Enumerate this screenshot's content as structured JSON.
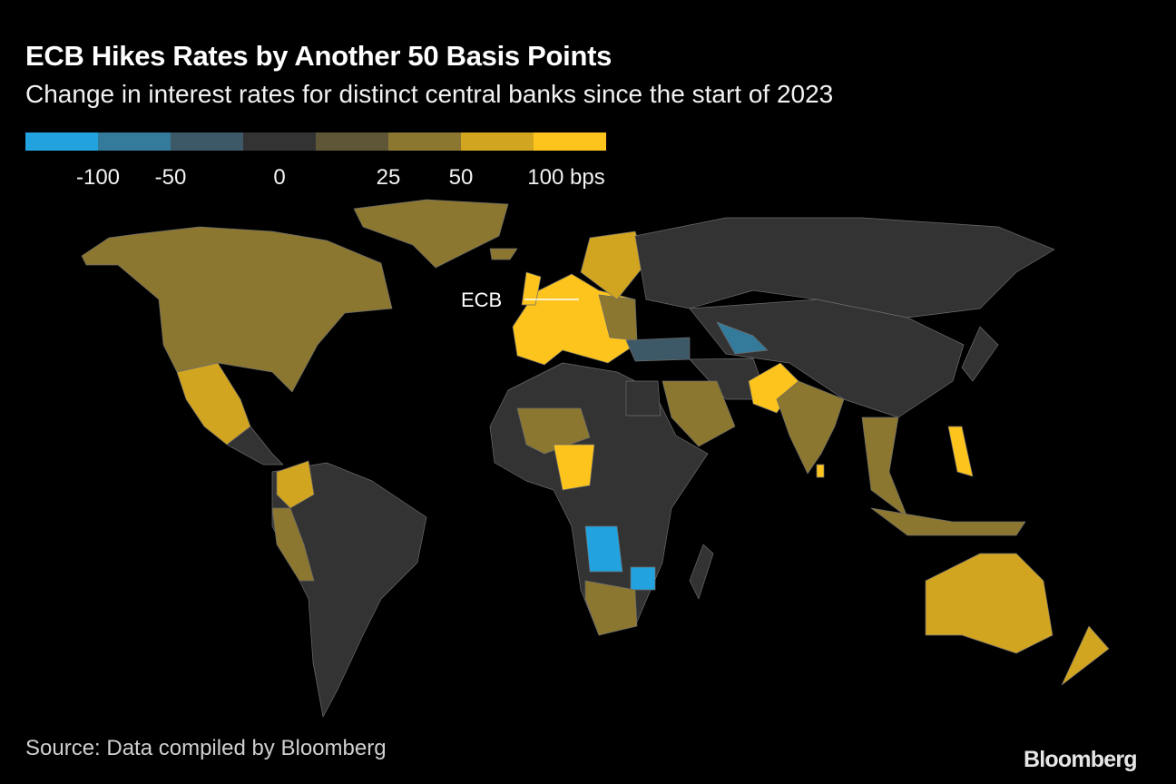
{
  "header": {
    "title": "ECB Hikes Rates by Another 50 Basis Points",
    "subtitle": "Change in interest rates for distinct central banks since the start of 2023"
  },
  "legend": {
    "colors": [
      "#22a3e0",
      "#347a9a",
      "#3d5866",
      "#333333",
      "#5f5537",
      "#8c7730",
      "#d2a521",
      "#fcc41c"
    ],
    "labels": [
      "-100",
      "-50",
      "0",
      "25",
      "50",
      "100 bps"
    ]
  },
  "annotation": {
    "label": "ECB"
  },
  "footer": {
    "source": "Source: Data compiled by Bloomberg",
    "logo": "Bloomberg"
  }
}
